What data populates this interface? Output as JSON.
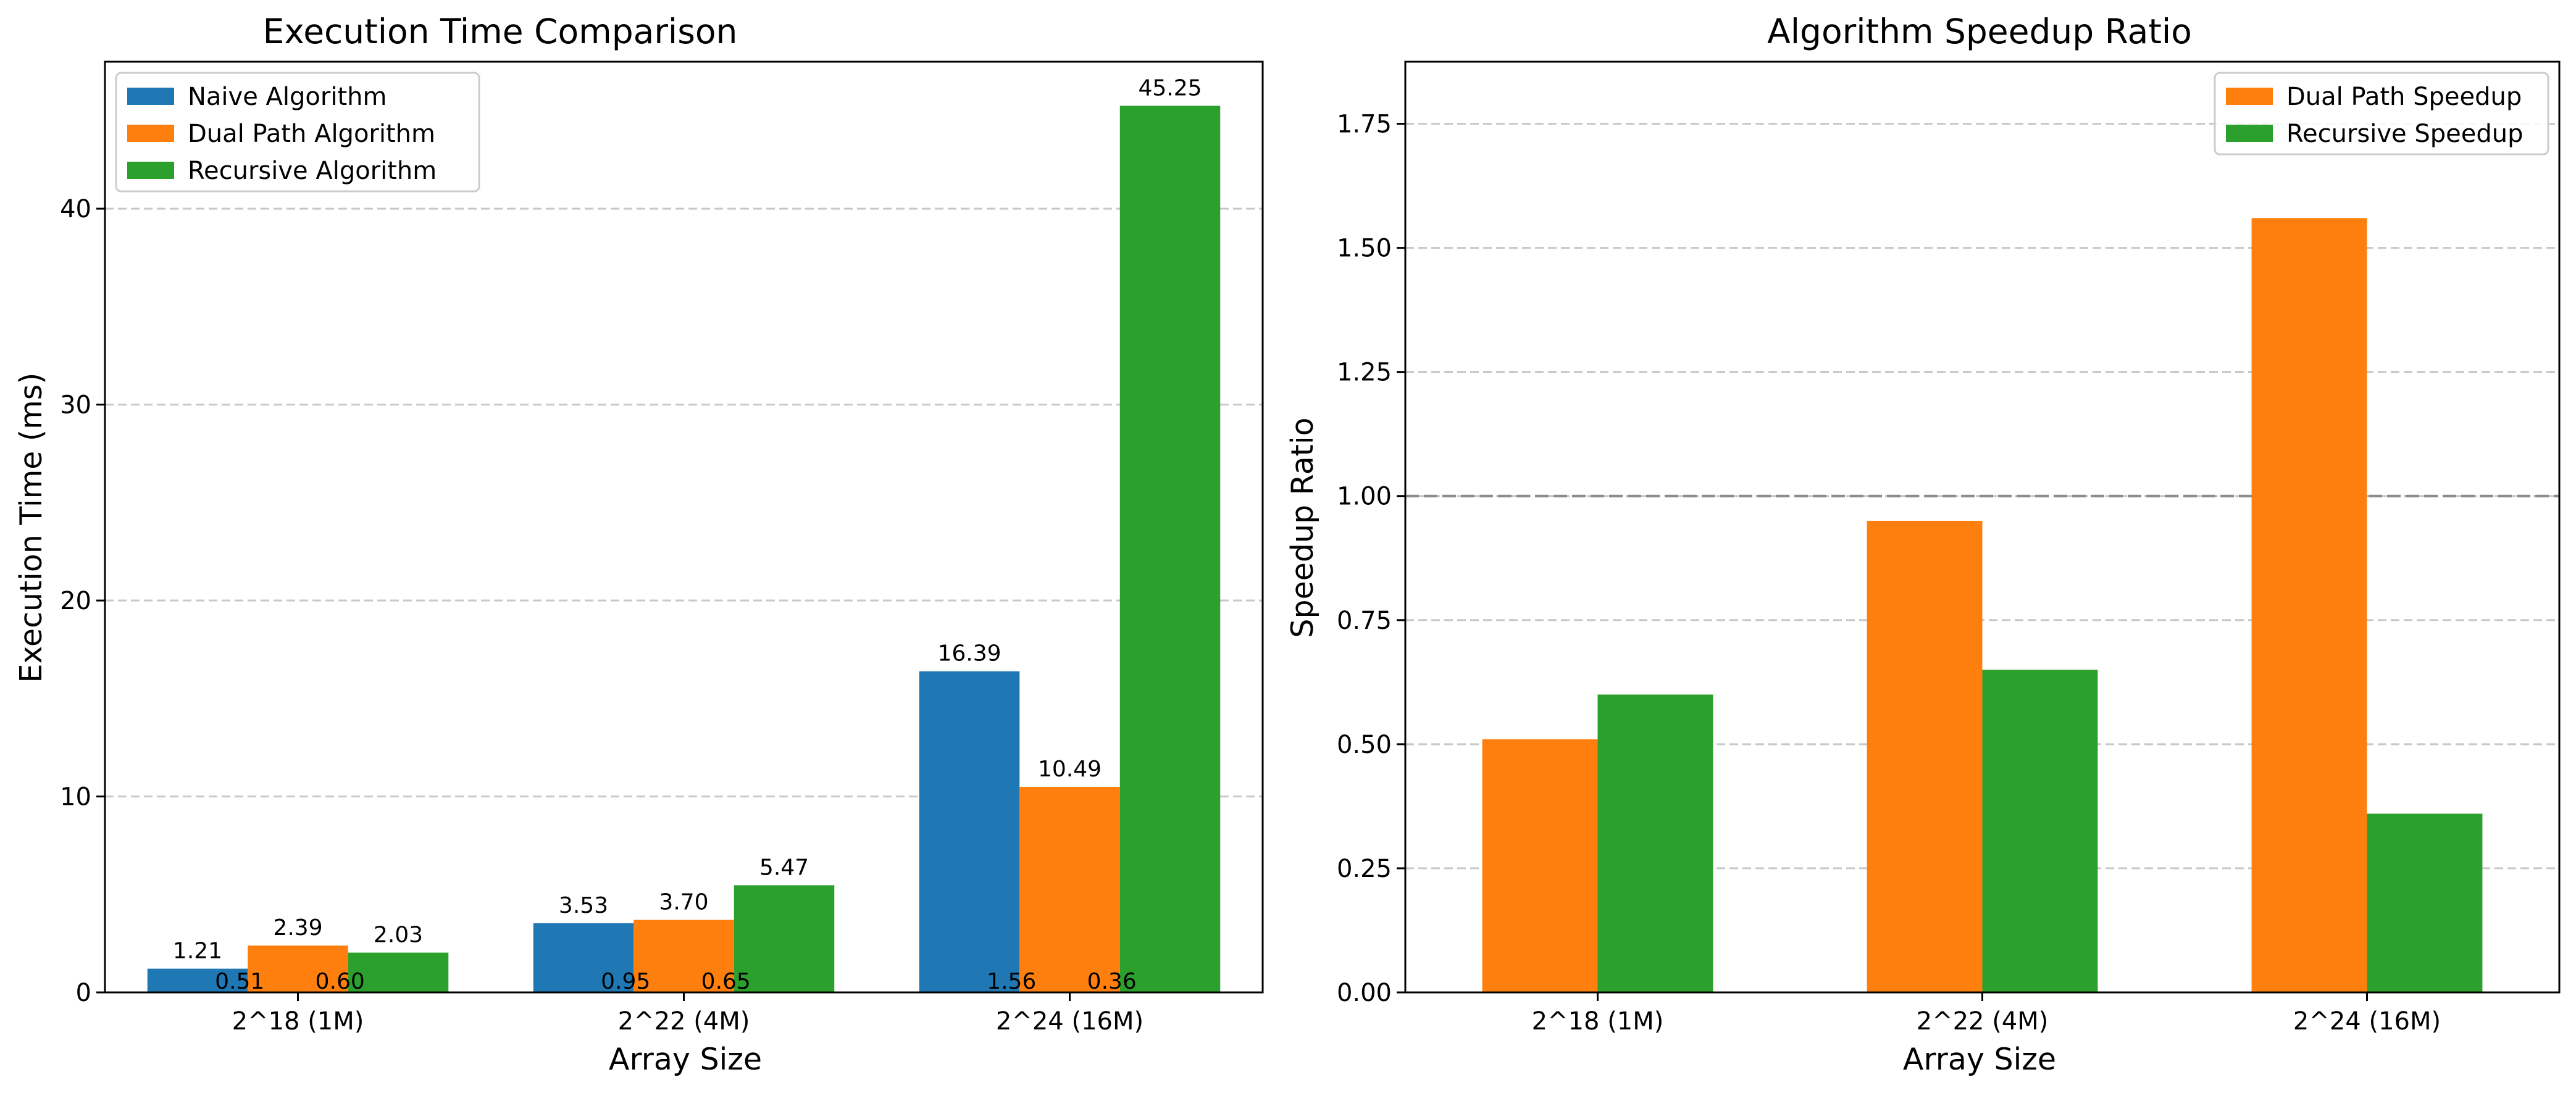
{
  "chart_data": [
    {
      "type": "bar",
      "title": "Execution Time Comparison",
      "xlabel": "Array Size",
      "ylabel": "Execution Time (ms)",
      "categories": [
        "2^18 (1M)",
        "2^22 (4M)",
        "2^24 (16M)"
      ],
      "ylim": [
        0,
        47.5
      ],
      "yticks": [
        0,
        10,
        20,
        30,
        40
      ],
      "grid": "y, dashed",
      "legend_position": "top-left",
      "series": [
        {
          "name": "Naive Algorithm",
          "color": "#1f77b4",
          "values": [
            1.21,
            3.53,
            16.39
          ],
          "labels": [
            "1.21",
            "3.53",
            "16.39"
          ]
        },
        {
          "name": "Dual Path Algorithm",
          "color": "#ff7f0e",
          "values": [
            2.39,
            3.7,
            10.49
          ],
          "labels": [
            "2.39",
            "3.70",
            "10.49"
          ]
        },
        {
          "name": "Recursive Algorithm",
          "color": "#2ca02c",
          "values": [
            2.03,
            5.47,
            45.25
          ],
          "labels": [
            "2.03",
            "5.47",
            "45.25"
          ]
        }
      ],
      "annotations": {
        "description": "speedup values printed near the bottom of each group",
        "items": [
          {
            "category": 0,
            "between": "naive-dual",
            "text": "0.51"
          },
          {
            "category": 0,
            "between": "dual-recursive",
            "text": "0.60"
          },
          {
            "category": 1,
            "between": "naive-dual",
            "text": "0.95"
          },
          {
            "category": 1,
            "between": "dual-recursive",
            "text": "0.65"
          },
          {
            "category": 2,
            "between": "naive-dual",
            "text": "1.56"
          },
          {
            "category": 2,
            "between": "dual-recursive",
            "text": "0.36"
          }
        ]
      }
    },
    {
      "type": "bar",
      "title": "Algorithm Speedup Ratio",
      "xlabel": "Array Size",
      "ylabel": "Speedup Ratio",
      "categories": [
        "2^18 (1M)",
        "2^22 (4M)",
        "2^24 (16M)"
      ],
      "ylim": [
        0,
        1.875
      ],
      "yticks": [
        "0.00",
        "0.25",
        "0.50",
        "0.75",
        "1.00",
        "1.25",
        "1.50",
        "1.75"
      ],
      "grid": "y, dashed",
      "reference_line": 1.0,
      "legend_position": "top-right",
      "series": [
        {
          "name": "Dual Path Speedup",
          "color": "#ff7f0e",
          "values": [
            0.51,
            0.95,
            1.56
          ]
        },
        {
          "name": "Recursive Speedup",
          "color": "#2ca02c",
          "values": [
            0.6,
            0.65,
            0.36
          ]
        }
      ]
    }
  ]
}
